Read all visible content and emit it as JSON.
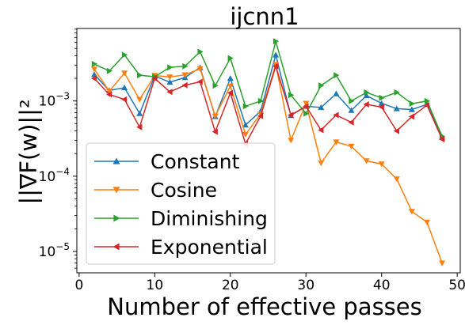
{
  "chart_data": {
    "type": "line",
    "title": "ijcnn1",
    "xlabel": "Number of effective passes",
    "ylabel": "||∇F(w)||²",
    "xlim": [
      -0.3,
      50.4
    ],
    "ylim": [
      5.2e-06,
      0.0092
    ],
    "yscale": "log",
    "grid": false,
    "legend_position": "lower-left",
    "x_ticks": [
      0,
      10,
      20,
      30,
      40,
      50
    ],
    "y_ticks": [
      {
        "value": 0.001,
        "base": "10",
        "exp": "−3"
      },
      {
        "value": 0.0001,
        "base": "10",
        "exp": "−4"
      },
      {
        "value": 1e-05,
        "base": "10",
        "exp": "−5"
      }
    ],
    "x": [
      2,
      4,
      6,
      8,
      10,
      12,
      14,
      16,
      18,
      20,
      22,
      24,
      26,
      28,
      30,
      32,
      34,
      36,
      38,
      40,
      42,
      44,
      46,
      48
    ],
    "series": [
      {
        "name": "Constant",
        "color": "#1f77b4",
        "marker": "triangle-up",
        "values": [
          0.00225,
          0.00138,
          0.0015,
          0.00068,
          0.00215,
          0.00178,
          0.00205,
          0.00278,
          0.00062,
          0.002,
          0.00048,
          0.00073,
          0.0041,
          0.00064,
          0.00085,
          0.00082,
          0.00125,
          0.00075,
          0.00118,
          0.00093,
          0.00079,
          0.00077,
          0.0009,
          0.00033
        ]
      },
      {
        "name": "Cosine",
        "color": "#ff7f0e",
        "marker": "triangle-down",
        "values": [
          0.00265,
          0.00135,
          0.00235,
          0.00105,
          0.00218,
          0.00208,
          0.00222,
          0.00268,
          0.00063,
          0.00158,
          0.00036,
          0.00067,
          0.00305,
          0.0003,
          0.00093,
          0.00015,
          0.000285,
          0.00025,
          0.00016,
          0.000145,
          9.2e-05,
          3.4e-05,
          2.45e-05,
          7e-06
        ]
      },
      {
        "name": "Diminishing",
        "color": "#2ca02c",
        "marker": "triangle-right",
        "values": [
          0.0031,
          0.0025,
          0.0041,
          0.0022,
          0.0021,
          0.0028,
          0.0029,
          0.0045,
          0.0016,
          0.0037,
          0.00085,
          0.001,
          0.0062,
          0.0012,
          0.00068,
          0.0016,
          0.0022,
          0.001,
          0.0013,
          0.0011,
          0.0013,
          0.00092,
          0.001,
          0.00034
        ]
      },
      {
        "name": "Exponential",
        "color": "#d62728",
        "marker": "triangle-left",
        "values": [
          0.002,
          0.00122,
          0.00105,
          0.00045,
          0.002,
          0.00132,
          0.00162,
          0.0018,
          0.00039,
          0.00128,
          0.00027,
          0.00063,
          0.0029,
          0.00065,
          0.00085,
          0.00041,
          0.00065,
          0.00052,
          0.0009,
          0.00083,
          0.0004,
          0.00062,
          0.00088,
          0.00031
        ]
      }
    ]
  }
}
